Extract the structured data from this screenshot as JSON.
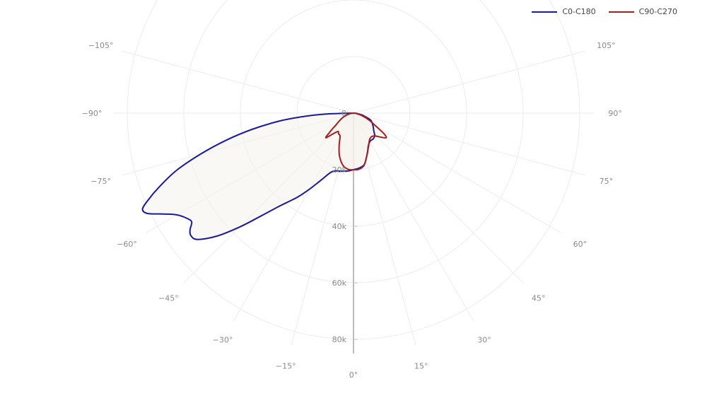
{
  "chart_data": {
    "type": "polar",
    "angle_ticks": [
      "0°",
      "15°",
      "30°",
      "45°",
      "60°",
      "75°",
      "90°",
      "105°",
      "−105°",
      "−90°",
      "−75°",
      "−60°",
      "−45°",
      "−30°",
      "−15°"
    ],
    "angle_tick_values": [
      0,
      15,
      30,
      45,
      60,
      75,
      90,
      105,
      -105,
      -90,
      -75,
      -60,
      -45,
      -30,
      -15
    ],
    "radial_ticks": [
      "0",
      "20k",
      "40k",
      "60k",
      "80k"
    ],
    "radial_tick_values": [
      0,
      20000,
      40000,
      60000,
      80000
    ],
    "radial_range": [
      0,
      85000
    ],
    "grid": true,
    "legend_position": "top-right",
    "series": [
      {
        "name": "C0-C180",
        "color": "#1a1a9c",
        "points": [
          [
            -90,
            0
          ],
          [
            -88,
            10000
          ],
          [
            -86,
            18000
          ],
          [
            -84,
            26000
          ],
          [
            -81,
            36000
          ],
          [
            -78,
            46000
          ],
          [
            -75,
            56000
          ],
          [
            -72,
            66000
          ],
          [
            -69,
            74000
          ],
          [
            -67,
            79000
          ],
          [
            -65.5,
            82000
          ],
          [
            -64,
            81000
          ],
          [
            -62,
            76000
          ],
          [
            -60,
            72000
          ],
          [
            -57.5,
            69500
          ],
          [
            -56,
            69000
          ],
          [
            -54.5,
            71000
          ],
          [
            -53,
            72000
          ],
          [
            -51,
            71000
          ],
          [
            -48,
            65000
          ],
          [
            -45,
            57000
          ],
          [
            -42,
            49000
          ],
          [
            -38.5,
            42000
          ],
          [
            -36,
            38500
          ],
          [
            -33.5,
            35500
          ],
          [
            -30,
            31000
          ],
          [
            -26,
            26500
          ],
          [
            -20,
            22000
          ],
          [
            -12,
            21000
          ],
          [
            -5,
            20500
          ],
          [
            0,
            20000
          ],
          [
            6,
            19500
          ],
          [
            12,
            18500
          ],
          [
            19,
            15000
          ],
          [
            25,
            12500
          ],
          [
            31,
            11500
          ],
          [
            37,
            11500
          ],
          [
            43,
            11000
          ],
          [
            49,
            9500
          ],
          [
            55,
            8500
          ],
          [
            62,
            7500
          ],
          [
            68,
            6500
          ],
          [
            73,
            4500
          ],
          [
            78,
            3000
          ],
          [
            84,
            1000
          ],
          [
            90,
            0
          ]
        ]
      },
      {
        "name": "C90-C270",
        "color": "#a31f1f",
        "points": [
          [
            -90,
            0
          ],
          [
            -80,
            1500
          ],
          [
            -70,
            3500
          ],
          [
            -62,
            5500
          ],
          [
            -56,
            7500
          ],
          [
            -53,
            9500
          ],
          [
            -51,
            11000
          ],
          [
            -49.5,
            12500
          ],
          [
            -48,
            13000
          ],
          [
            -45,
            10500
          ],
          [
            -40,
            8500
          ],
          [
            -36,
            9000
          ],
          [
            -30,
            9500
          ],
          [
            -24,
            12500
          ],
          [
            -18,
            16000
          ],
          [
            -11,
            19000
          ],
          [
            -5,
            20000
          ],
          [
            0,
            20000
          ],
          [
            5,
            20000
          ],
          [
            11,
            19000
          ],
          [
            17,
            16000
          ],
          [
            24,
            13000
          ],
          [
            31,
            11000
          ],
          [
            37,
            10500
          ],
          [
            43,
            11000
          ],
          [
            49,
            13000
          ],
          [
            53,
            14500
          ],
          [
            56,
            13000
          ],
          [
            60,
            9000
          ],
          [
            66,
            6000
          ],
          [
            74,
            3000
          ],
          [
            82,
            1000
          ],
          [
            90,
            0
          ]
        ]
      }
    ]
  }
}
